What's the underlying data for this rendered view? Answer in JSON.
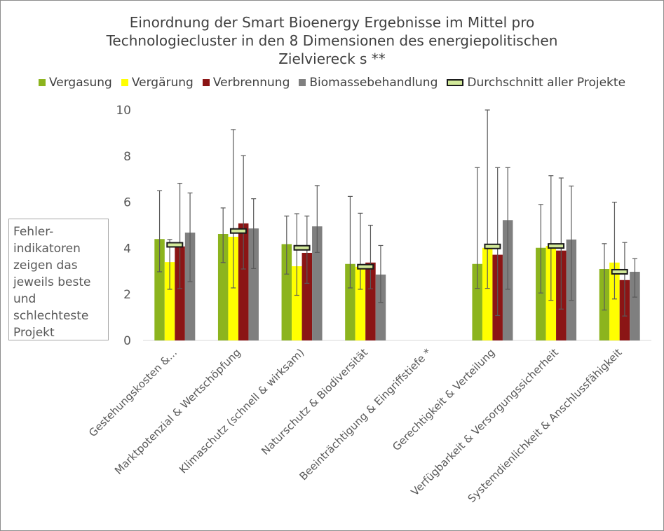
{
  "chart_data": {
    "type": "bar",
    "title_lines": [
      "Einordnung der Smart Bioenergy Ergebnisse im Mittel pro",
      "Technologiecluster in den 8 Dimensionen des energiepolitischen",
      "Zielviereck s **"
    ],
    "ylim": [
      0,
      10
    ],
    "yticks": [
      0,
      2,
      4,
      6,
      8,
      10
    ],
    "categories": [
      "Gestehungskosten &...",
      "Marktpotenzial & Wertschöpfung",
      "Klimaschutz (schnell & wirksam)",
      "Naturschutz & Biodiversität",
      "Beeinträchtigung & Eingriffstiefe *",
      "Gerechtigkeit & Verteilung",
      "Verfügbarkeit  & Versorgungssicherheit",
      "Systemdienlichkeit & Anschlussfähigkeit"
    ],
    "series": [
      {
        "name": "Vergasung",
        "color": "#8cb41e",
        "values": [
          4.4,
          4.62,
          4.18,
          3.32,
          null,
          3.32,
          4.02,
          3.1
        ],
        "err_low": [
          2.98,
          3.38,
          2.88,
          2.28,
          null,
          2.26,
          2.06,
          1.32
        ],
        "err_high": [
          6.5,
          5.75,
          5.4,
          6.25,
          null,
          7.5,
          5.9,
          4.2
        ]
      },
      {
        "name": "Vergärung",
        "color": "#ffff00",
        "values": [
          3.4,
          4.5,
          3.22,
          3.2,
          null,
          4.02,
          4.1,
          3.38
        ],
        "err_low": [
          2.22,
          2.28,
          1.96,
          2.22,
          null,
          2.26,
          1.74,
          1.8
        ],
        "err_high": [
          4.38,
          9.15,
          5.5,
          5.52,
          null,
          10.0,
          7.15,
          6.0
        ]
      },
      {
        "name": "Verbrennung",
        "color": "#8b1515",
        "values": [
          4.08,
          5.08,
          3.8,
          3.38,
          null,
          3.72,
          3.9,
          2.62
        ],
        "err_low": [
          2.25,
          3.1,
          2.48,
          2.24,
          null,
          1.08,
          1.36,
          1.06
        ],
        "err_high": [
          6.82,
          8.02,
          5.4,
          5.0,
          null,
          7.5,
          7.05,
          4.25
        ]
      },
      {
        "name": "Biomassebehandlung",
        "color": "#7f7f7f",
        "values": [
          4.68,
          4.86,
          4.95,
          2.86,
          null,
          5.22,
          4.38,
          2.98
        ],
        "err_low": [
          2.55,
          3.12,
          3.82,
          1.65,
          null,
          2.22,
          1.74,
          1.88
        ],
        "err_high": [
          6.4,
          6.15,
          6.72,
          4.12,
          null,
          7.5,
          6.7,
          3.55
        ]
      }
    ],
    "average": {
      "name": "Durchschnitt aller Projekte",
      "color": "#d2e99a",
      "values": [
        4.15,
        4.75,
        4.02,
        3.2,
        null,
        4.08,
        4.1,
        2.98
      ]
    },
    "legend_position": "top",
    "grid": false
  },
  "note_lines": [
    "Fehler-",
    "indikatoren",
    "zeigen das",
    "jeweils beste",
    "und",
    "schlechteste",
    "Projekt"
  ]
}
